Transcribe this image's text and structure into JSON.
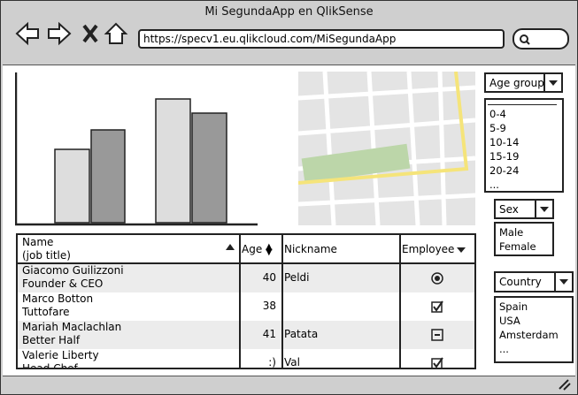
{
  "window": {
    "title": "Mi SegundaApp en QlikSense",
    "url": "https://specv1.eu.qlikcloud.com/MiSegundaApp"
  },
  "table": {
    "columns": {
      "name": "Name",
      "job_title": "(job title)",
      "age": "Age",
      "nickname": "Nickname",
      "employee": "Employee"
    },
    "rows": [
      {
        "name": "Giacomo Guilizzoni",
        "job_title": "Founder & CEO",
        "age": 40,
        "nickname": "Peldi",
        "employee": "radio"
      },
      {
        "name": "Marco Botton",
        "job_title": "Tuttofare",
        "age": 38,
        "nickname": null,
        "employee": "check"
      },
      {
        "name": "Mariah Maclachlan",
        "job_title": "Better Half",
        "age": 41,
        "nickname": "Patata",
        "employee": "minus"
      },
      {
        "name": "Valerie Liberty",
        "job_title": "Head Chef",
        "age": ":)",
        "nickname": "Val",
        "employee": "check"
      }
    ]
  },
  "filters": [
    {
      "label": "Age group",
      "items": [
        "0-4",
        "5-9",
        "10-14",
        "15-19",
        "20-24",
        "..."
      ]
    },
    {
      "label": "Sex",
      "items": [
        "Male",
        "Female"
      ]
    },
    {
      "label": "Country",
      "items": [
        "Spain",
        "USA",
        "Amsterdam",
        "..."
      ]
    }
  ]
}
